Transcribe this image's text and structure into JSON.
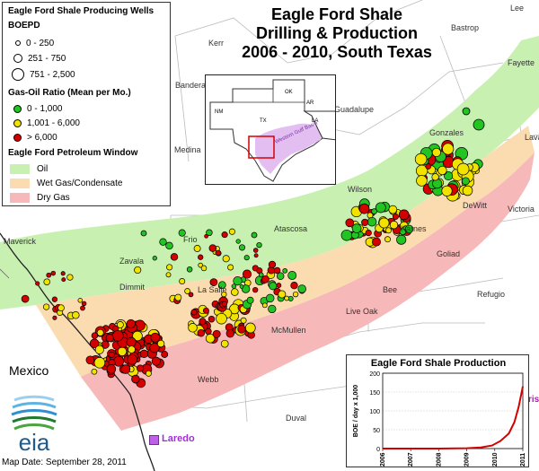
{
  "title": {
    "line1": "Eagle Ford Shale",
    "line2": "Drilling & Production",
    "line3": "2006 - 2010, South Texas"
  },
  "legend": {
    "heading": "Eagle Ford Shale Producing Wells",
    "boepd_heading": "BOEPD",
    "boepd": [
      "0 - 250",
      "251 - 750",
      "751 - 2,500"
    ],
    "gor_heading": "Gas-Oil Ratio (Mean per Mo.)",
    "gor": [
      {
        "label": "0 - 1,000",
        "color": "#22c422"
      },
      {
        "label": "1,001 - 6,000",
        "color": "#f2e200"
      },
      {
        "label": "> 6,000",
        "color": "#d40000"
      }
    ],
    "window_heading": "Eagle Ford Petroleum Window",
    "windows": [
      {
        "label": "Oil",
        "color": "#c8f0b0"
      },
      {
        "label": "Wet Gas/Condensate",
        "color": "#fbdcb0"
      },
      {
        "label": "Dry Gas",
        "color": "#f6b8b8"
      }
    ]
  },
  "counties": [
    "Lee",
    "Bastrop",
    "Fayette",
    "Kerr",
    "Bandera",
    "Guadalupe",
    "Gonzales",
    "Lava",
    "Medina",
    "Wilson",
    "DeWitt",
    "Victoria",
    "Frio",
    "Atascosa",
    "Karnes",
    "Goliad",
    "Maverick",
    "Zavala",
    "Dimmit",
    "La Salle",
    "Bee",
    "Refugio",
    "Live Oak",
    "McMullen",
    "Webb",
    "Duval"
  ],
  "inset": {
    "states": [
      "OK",
      "AR",
      "NM",
      "TX",
      "LA"
    ],
    "region_label": "Western Gulf Basin"
  },
  "places": {
    "country": "Mexico",
    "city": "Laredo"
  },
  "map_date": "Map Date: September 28, 2011",
  "edge_label": "rist",
  "chart_data": {
    "type": "line",
    "title": "Eagle Ford Shale Production",
    "ylabel": "BOE / day x 1,000",
    "xlabel": "",
    "categories": [
      "2006",
      "2007",
      "2008",
      "2009",
      "2010",
      "2011"
    ],
    "yticks": [
      0,
      50,
      100,
      150,
      200
    ],
    "ylim": [
      0,
      200
    ],
    "xlim": [
      2006,
      2011
    ],
    "series": [
      {
        "color": "#d40000",
        "x": [
          2006,
          2007,
          2008,
          2009,
          2009.5,
          2009.9,
          2010.2,
          2010.5,
          2010.7,
          2010.85,
          2011
        ],
        "values": [
          0,
          0,
          0,
          1,
          3,
          8,
          20,
          40,
          70,
          110,
          165
        ]
      }
    ]
  }
}
